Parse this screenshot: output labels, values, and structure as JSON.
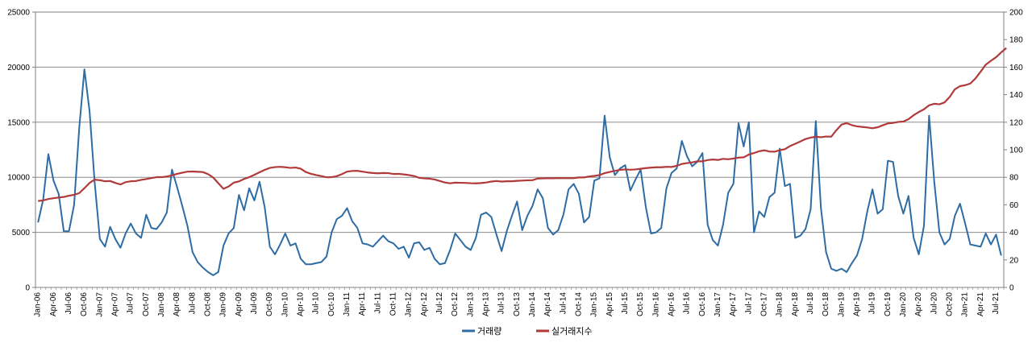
{
  "chart_data": {
    "type": "line",
    "x_tick_labels": [
      "Jan-06",
      "Apr-06",
      "Jul-06",
      "Oct-06",
      "Jan-07",
      "Apr-07",
      "Jul-07",
      "Oct-07",
      "Jan-08",
      "Apr-08",
      "Jul-08",
      "Oct-08",
      "Jan-09",
      "Apr-09",
      "Jul-09",
      "Oct-09",
      "Jan-10",
      "Apr-10",
      "Jul-10",
      "Oct-10",
      "Jan-11",
      "Apr-11",
      "Jul-11",
      "Oct-11",
      "Jan-12",
      "Apr-12",
      "Jul-12",
      "Oct-12",
      "Jan-13",
      "Apr-13",
      "Jul-13",
      "Oct-13",
      "Jan-14",
      "Apr-14",
      "Jul-14",
      "Oct-14",
      "Jan-15",
      "Apr-15",
      "Jul-15",
      "Oct-15",
      "Jan-16",
      "Apr-16",
      "Jul-16",
      "Oct-16",
      "Jan-17",
      "Apr-17",
      "Jul-17",
      "Oct-17",
      "Jan-18",
      "Apr-18",
      "Jul-18",
      "Oct-18",
      "Jan-19",
      "Apr-19",
      "Jul-19",
      "Oct-19",
      "Jan-20",
      "Apr-20",
      "Jul-20",
      "Oct-20",
      "Jan-21",
      "Apr-21",
      "Jul-21"
    ],
    "y_left": {
      "min": 0,
      "max": 25000,
      "ticks": [
        "0",
        "5000",
        "10000",
        "15000",
        "20000",
        "25000"
      ]
    },
    "y_right": {
      "min": 0,
      "max": 200,
      "ticks": [
        "0",
        "20",
        "40",
        "60",
        "80",
        "100",
        "120",
        "140",
        "160",
        "180",
        "200"
      ]
    },
    "grid": "horizontal",
    "legend_position": "bottom",
    "series": [
      {
        "name": "거래량",
        "axis": "left",
        "color": "#2e6ca4",
        "values": [
          5900,
          8000,
          12100,
          9700,
          8500,
          5100,
          5100,
          7500,
          14500,
          19800,
          16000,
          9500,
          4400,
          3700,
          5500,
          4400,
          3600,
          4900,
          5800,
          4900,
          4500,
          6600,
          5400,
          5300,
          5900,
          6800,
          10700,
          9100,
          7400,
          5600,
          3200,
          2300,
          1800,
          1400,
          1100,
          1400,
          3800,
          4900,
          5400,
          8400,
          7000,
          9000,
          7900,
          9600,
          7300,
          3700,
          3000,
          3900,
          4900,
          3800,
          4000,
          2600,
          2100,
          2100,
          2200,
          2300,
          2800,
          5000,
          6200,
          6500,
          7200,
          6000,
          5400,
          4000,
          3900,
          3700,
          4200,
          4700,
          4200,
          4000,
          3500,
          3700,
          2700,
          4000,
          4100,
          3400,
          3600,
          2600,
          2100,
          2200,
          3400,
          4900,
          4300,
          3700,
          3400,
          4500,
          6600,
          6800,
          6400,
          4800,
          3300,
          5100,
          6500,
          7800,
          5200,
          6500,
          7400,
          8900,
          8100,
          5400,
          4800,
          5200,
          6600,
          8900,
          9400,
          8500,
          5900,
          6400,
          9700,
          9900,
          15600,
          11800,
          10200,
          10800,
          11100,
          8800,
          9800,
          10700,
          7300,
          4900,
          5000,
          5400,
          9000,
          10400,
          10800,
          13300,
          11900,
          11000,
          11400,
          12200,
          5700,
          4300,
          3800,
          5700,
          8600,
          9400,
          14900,
          12800,
          15000,
          5000,
          6900,
          6400,
          8200,
          8600,
          12600,
          9200,
          9400,
          4500,
          4700,
          5300,
          7100,
          15100,
          7200,
          3200,
          1700,
          1500,
          1700,
          1400,
          2200,
          2900,
          4400,
          6900,
          8900,
          6700,
          7100,
          11500,
          11400,
          8300,
          6700,
          8300,
          4500,
          3000,
          5600,
          15600,
          9600,
          5000,
          3900,
          4400,
          6500,
          7600,
          5800,
          3900,
          3800,
          3700,
          4900,
          3900,
          4800,
          2900
        ]
      },
      {
        "name": "실거래지수",
        "axis": "right",
        "color": "#b03a3a",
        "values": [
          62.8,
          63.2,
          64.2,
          64.8,
          65.3,
          65.7,
          66.6,
          67.3,
          68.5,
          72.1,
          75.9,
          78.3,
          77.9,
          77.1,
          77.3,
          75.9,
          74.8,
          76.5,
          77.1,
          77.3,
          78.1,
          78.7,
          79.4,
          80.1,
          80.1,
          80.6,
          81.4,
          82.5,
          83.3,
          84.1,
          84.2,
          84.0,
          83.8,
          82.3,
          79.8,
          75.7,
          71.6,
          73.3,
          76.1,
          77.0,
          78.8,
          80.1,
          81.8,
          83.6,
          85.4,
          86.8,
          87.4,
          87.6,
          87.3,
          86.8,
          87.1,
          86.2,
          83.8,
          82.5,
          81.6,
          80.9,
          80.0,
          80.1,
          80.8,
          82.3,
          84.1,
          84.6,
          84.7,
          84.1,
          83.5,
          83.1,
          82.9,
          83.1,
          83.0,
          82.4,
          82.5,
          82.1,
          81.6,
          80.9,
          79.6,
          79.2,
          79.0,
          78.4,
          77.3,
          76.2,
          75.6,
          76.1,
          76.0,
          75.9,
          75.7,
          75.6,
          75.8,
          76.2,
          76.9,
          77.3,
          76.9,
          77.1,
          77.1,
          77.4,
          77.6,
          77.8,
          77.9,
          79.1,
          79.2,
          79.3,
          79.3,
          79.4,
          79.4,
          79.4,
          79.4,
          79.9,
          79.9,
          80.6,
          81.0,
          81.6,
          83.0,
          83.9,
          84.7,
          85.4,
          85.7,
          85.5,
          85.7,
          86.2,
          86.7,
          87.0,
          87.3,
          87.3,
          87.6,
          87.5,
          88.3,
          89.7,
          90.3,
          90.8,
          91.6,
          91.6,
          92.5,
          92.9,
          92.6,
          93.4,
          93.1,
          93.6,
          94.3,
          94.5,
          96.5,
          97.6,
          98.9,
          99.6,
          98.7,
          98.6,
          99.7,
          100.4,
          102.7,
          104.3,
          106.0,
          107.8,
          108.8,
          109.5,
          109.1,
          109.6,
          109.5,
          114.2,
          118.3,
          119.3,
          117.9,
          117.0,
          116.6,
          116.2,
          115.6,
          116.3,
          117.8,
          119.1,
          119.5,
          120.2,
          120.5,
          122.2,
          125.1,
          127.4,
          129.4,
          132.3,
          133.4,
          133.0,
          134.4,
          138.4,
          143.9,
          146.2,
          146.9,
          148.1,
          151.8,
          156.7,
          161.8,
          164.6,
          167.2,
          170.7,
          173.9
        ]
      }
    ]
  }
}
